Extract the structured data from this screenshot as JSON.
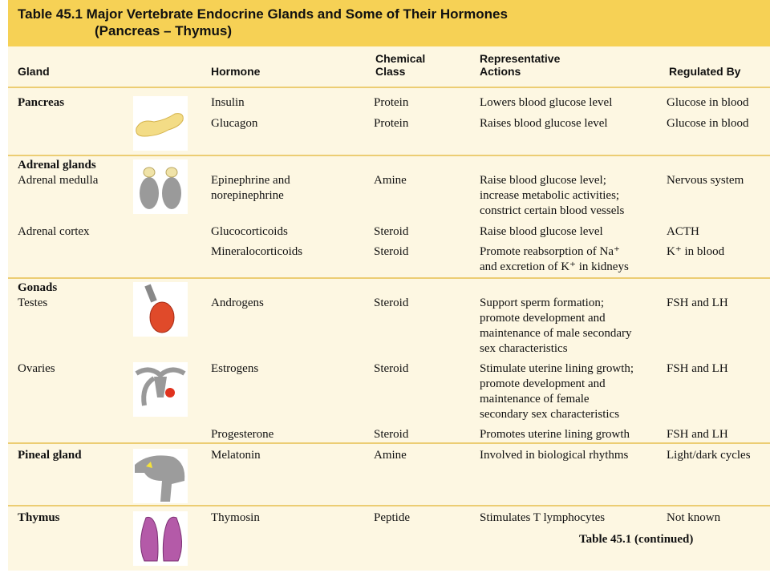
{
  "title": {
    "lines": [
      "Table 45.1  Major Vertebrate Endocrine Glands and Some of Their Hormones",
      "(Pancreas – Thymus)"
    ]
  },
  "headers": [
    {
      "lines": [
        "Gland"
      ]
    },
    {
      "lines": [
        "Hormone"
      ]
    },
    {
      "lines": [
        "Chemical",
        "Class"
      ]
    },
    {
      "lines": [
        "Representative",
        "Actions"
      ]
    },
    {
      "lines": [
        "Regulated By"
      ]
    }
  ],
  "glands": [
    {
      "name": "Pancreas",
      "heading": true
    },
    {
      "name": "Adrenal glands",
      "heading": true
    },
    {
      "name": "Adrenal medulla",
      "heading": false
    },
    {
      "name": "Adrenal cortex",
      "heading": false
    },
    {
      "name": "Gonads",
      "heading": true
    },
    {
      "name": "Testes",
      "heading": false
    },
    {
      "name": "Ovaries",
      "heading": false
    },
    {
      "name": "Pineal gland",
      "heading": true
    },
    {
      "name": "Thymus",
      "heading": true
    }
  ],
  "rows": [
    {
      "hormone": [
        "Insulin"
      ],
      "class": "Protein",
      "actions": [
        "Lowers blood glucose level"
      ],
      "regulated": "Glucose in blood"
    },
    {
      "hormone": [
        "Glucagon"
      ],
      "class": "Protein",
      "actions": [
        "Raises blood glucose level"
      ],
      "regulated": "Glucose in blood"
    },
    {
      "hormone": [
        "Epinephrine and",
        "norepinephrine"
      ],
      "class": "Amine",
      "actions": [
        "Raise blood glucose level;",
        "increase metabolic activities;",
        "constrict certain blood vessels"
      ],
      "regulated": "Nervous system"
    },
    {
      "hormone": [
        "Glucocorticoids"
      ],
      "class": "Steroid",
      "actions": [
        "Raise blood glucose level"
      ],
      "regulated": "ACTH"
    },
    {
      "hormone": [
        "Mineralocorticoids"
      ],
      "class": "Steroid",
      "actions": [
        "Promote reabsorption of Na⁺",
        "and excretion of K⁺ in kidneys"
      ],
      "regulated": "K⁺ in blood"
    },
    {
      "hormone": [
        "Androgens"
      ],
      "class": "Steroid",
      "actions": [
        "Support sperm formation;",
        "promote development and",
        "maintenance of male secondary",
        "sex characteristics"
      ],
      "regulated": "FSH and LH"
    },
    {
      "hormone": [
        "Estrogens"
      ],
      "class": "Steroid",
      "actions": [
        "Stimulate uterine lining growth;",
        "promote development and",
        "maintenance of female",
        "secondary sex characteristics"
      ],
      "regulated": "FSH and LH"
    },
    {
      "hormone": [
        "Progesterone"
      ],
      "class": "Steroid",
      "actions": [
        "Promotes uterine lining growth"
      ],
      "regulated": "FSH and LH"
    },
    {
      "hormone": [
        "Melatonin"
      ],
      "class": "Amine",
      "actions": [
        "Involved in biological rhythms"
      ],
      "regulated": "Light/dark cycles"
    },
    {
      "hormone": [
        "Thymosin"
      ],
      "class": "Peptide",
      "actions": [
        "Stimulates T lymphocytes"
      ],
      "regulated": "Not known"
    }
  ],
  "footer": "Table 45.1 (continued)"
}
